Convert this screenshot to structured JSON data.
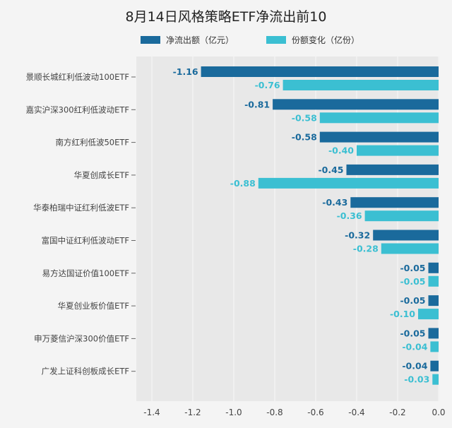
{
  "chart_data": {
    "type": "bar",
    "orientation": "horizontal",
    "title": "8月14日风格策略ETF净流出前10",
    "categories": [
      "景顺长城红利低波动100ETF",
      "嘉实沪深300红利低波动ETF",
      "南方红利低波50ETF",
      "华夏创成长ETF",
      "华泰柏瑞中证红利低波ETF",
      "富国中证红利低波动ETF",
      "易方达国证价值100ETF",
      "华夏创业板价值ETF",
      "申万菱信沪深300价值ETF",
      "广发上证科创板成长ETF"
    ],
    "series": [
      {
        "name": "净流出额（亿元）",
        "color": "#1a6a9c",
        "values": [
          -1.16,
          -0.81,
          -0.58,
          -0.45,
          -0.43,
          -0.32,
          -0.05,
          -0.05,
          -0.05,
          -0.04
        ],
        "labels": [
          "-1.16",
          "-0.81",
          "-0.58",
          "-0.45",
          "-0.43",
          "-0.32",
          "-0.05",
          "-0.05",
          "-0.05",
          "-0.04"
        ]
      },
      {
        "name": "份额变化（亿份）",
        "color": "#3bbfd2",
        "values": [
          -0.76,
          -0.58,
          -0.4,
          -0.88,
          -0.36,
          -0.28,
          -0.05,
          -0.1,
          -0.04,
          -0.03
        ],
        "labels": [
          "-0.76",
          "-0.58",
          "-0.40",
          "-0.88",
          "-0.36",
          "-0.28",
          "-0.05",
          "-0.10",
          "-0.04",
          "-0.03"
        ]
      }
    ],
    "xlim": [
      -1.5,
      0
    ],
    "xticks": [
      -1.4,
      -1.2,
      -1.0,
      -0.8,
      -0.6,
      -0.4,
      -0.2,
      0.0
    ],
    "xtick_labels": [
      "-1.4",
      "-1.2",
      "-1.0",
      "-0.8",
      "-0.6",
      "-0.4",
      "-0.2",
      "0.0"
    ],
    "grid": true,
    "legend_position": "top-center"
  }
}
